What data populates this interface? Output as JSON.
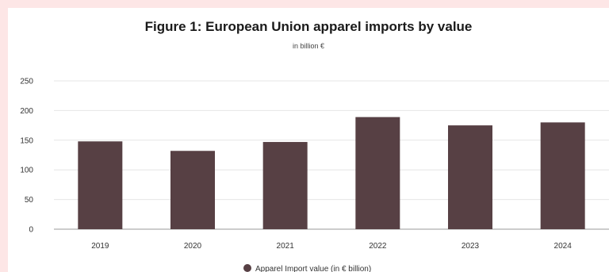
{
  "chart_data": {
    "type": "bar",
    "title": "Figure 1: European Union apparel imports by value",
    "subtitle": "in billion €",
    "categories": [
      "2019",
      "2020",
      "2021",
      "2022",
      "2023",
      "2024"
    ],
    "series": [
      {
        "name": "Apparel Import value (in € billion)",
        "values": [
          148,
          132,
          147,
          189,
          175,
          180
        ]
      }
    ],
    "ylim": [
      0,
      250
    ],
    "yticks": [
      0,
      50,
      100,
      150,
      200,
      250
    ],
    "grid": true,
    "legend": "bottom-center",
    "colors": {
      "bar": "#574044",
      "grid": "#e6e6e6",
      "axis": "#999999"
    }
  }
}
